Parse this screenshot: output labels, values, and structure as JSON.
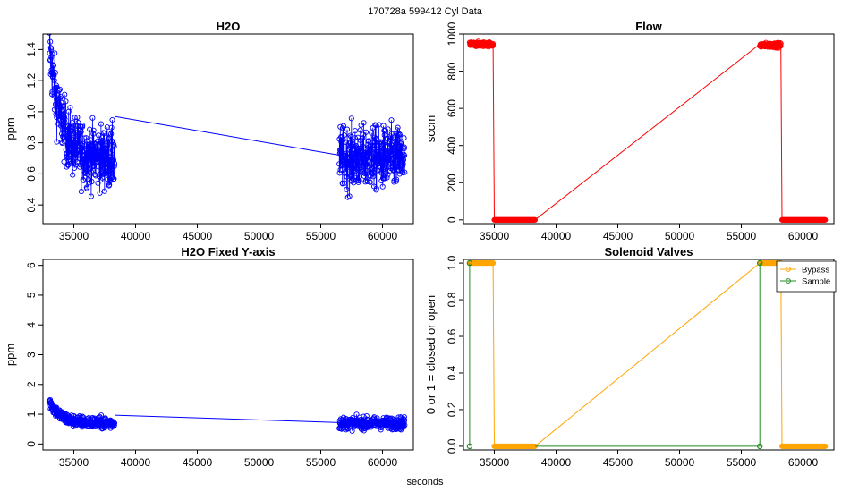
{
  "header": "170728a   599412   Cyl Data",
  "footer_xlabel": "seconds",
  "chart_data": [
    {
      "type": "scatter",
      "title": "H2O",
      "xlabel": "",
      "ylabel": "ppm",
      "xlim": [
        32500,
        62500
      ],
      "ylim": [
        0.28,
        1.5
      ],
      "xticks": [
        35000,
        40000,
        45000,
        50000,
        55000,
        60000
      ],
      "yticks": [
        0.4,
        0.6,
        0.8,
        1.0,
        1.2,
        1.4
      ],
      "color": "#0000ff",
      "series": [
        {
          "segments": [
            {
              "x_start": 33000,
              "x_end": 38300,
              "y_start": 1.45,
              "decay_to": 0.7,
              "noise": 0.1,
              "n": 340
            },
            {
              "x_start": 56500,
              "x_end": 61800,
              "y_start": 0.7,
              "decay_to": 0.7,
              "noise": 0.1,
              "n": 340
            }
          ],
          "connector": [
            [
              38300,
              0.97
            ],
            [
              56500,
              0.72
            ]
          ]
        }
      ]
    },
    {
      "type": "scatter",
      "title": "Flow",
      "xlabel": "",
      "ylabel": "sccm",
      "xlim": [
        32500,
        62500
      ],
      "ylim": [
        -20,
        1000
      ],
      "xticks": [
        35000,
        40000,
        45000,
        50000,
        55000,
        60000
      ],
      "yticks": [
        0,
        200,
        400,
        600,
        800,
        1000
      ],
      "color": "#ff0000",
      "series": [
        {
          "segments": [
            {
              "x_start": 33000,
              "x_end": 34900,
              "y_start": 945,
              "decay_to": 945,
              "noise": 6,
              "n": 120
            },
            {
              "x_start": 35000,
              "x_end": 38300,
              "y_start": 0,
              "decay_to": 0,
              "noise": 0,
              "n": 80
            },
            {
              "x_start": 56500,
              "x_end": 58200,
              "y_start": 940,
              "decay_to": 940,
              "noise": 6,
              "n": 120
            },
            {
              "x_start": 58300,
              "x_end": 61800,
              "y_start": 0,
              "decay_to": 0,
              "noise": 0,
              "n": 80
            }
          ],
          "connector": [
            [
              34900,
              940
            ],
            [
              35000,
              0
            ],
            [
              38300,
              0
            ],
            [
              56500,
              945
            ],
            [
              58200,
              940
            ],
            [
              58300,
              0
            ]
          ]
        }
      ]
    },
    {
      "type": "scatter",
      "title": "H2O Fixed Y-axis",
      "xlabel": "",
      "ylabel": "ppm",
      "xlim": [
        32500,
        62500
      ],
      "ylim": [
        -0.2,
        6.2
      ],
      "xticks": [
        35000,
        40000,
        45000,
        50000,
        55000,
        60000
      ],
      "yticks": [
        0,
        1,
        2,
        3,
        4,
        5,
        6
      ],
      "color": "#0000ff",
      "series": [
        {
          "segments": [
            {
              "x_start": 33000,
              "x_end": 38300,
              "y_start": 1.45,
              "decay_to": 0.7,
              "noise": 0.1,
              "n": 300
            },
            {
              "x_start": 56500,
              "x_end": 61800,
              "y_start": 0.7,
              "decay_to": 0.7,
              "noise": 0.1,
              "n": 300
            }
          ],
          "connector": [
            [
              38300,
              0.97
            ],
            [
              56500,
              0.72
            ]
          ]
        }
      ]
    },
    {
      "type": "line",
      "title": "Solenoid Valves",
      "xlabel": "",
      "ylabel": "0 or 1 = closed or open",
      "xlim": [
        32500,
        62500
      ],
      "ylim": [
        -0.02,
        1.02
      ],
      "xticks": [
        35000,
        40000,
        45000,
        50000,
        55000,
        60000
      ],
      "yticks": [
        0.0,
        0.2,
        0.4,
        0.6,
        0.8,
        1.0
      ],
      "legend_position": "top-right",
      "series": [
        {
          "name": "Bypass",
          "color": "#ffa500",
          "segments": [
            {
              "x_start": 33000,
              "x_end": 34900,
              "y_start": 1,
              "decay_to": 1,
              "noise": 0,
              "n": 60
            },
            {
              "x_start": 35000,
              "x_end": 38300,
              "y_start": 0,
              "decay_to": 0,
              "noise": 0,
              "n": 80
            },
            {
              "x_start": 56500,
              "x_end": 58200,
              "y_start": 1,
              "decay_to": 1,
              "noise": 0,
              "n": 60
            },
            {
              "x_start": 58300,
              "x_end": 61800,
              "y_start": 0,
              "decay_to": 0,
              "noise": 0,
              "n": 80
            }
          ],
          "connector": [
            [
              34900,
              1
            ],
            [
              35000,
              0
            ],
            [
              38300,
              0
            ],
            [
              56500,
              1
            ],
            [
              58200,
              1
            ],
            [
              58300,
              0
            ]
          ]
        },
        {
          "name": "Sample",
          "color": "#228b22",
          "points": [
            [
              33000,
              0
            ],
            [
              33000,
              1
            ],
            [
              56500,
              0
            ],
            [
              56500,
              1
            ]
          ],
          "connector": [
            [
              33000,
              0
            ],
            [
              33000,
              1
            ]
          ],
          "connector2": [
            [
              38300,
              0
            ],
            [
              56500,
              0
            ],
            [
              56500,
              1
            ]
          ]
        }
      ]
    }
  ]
}
